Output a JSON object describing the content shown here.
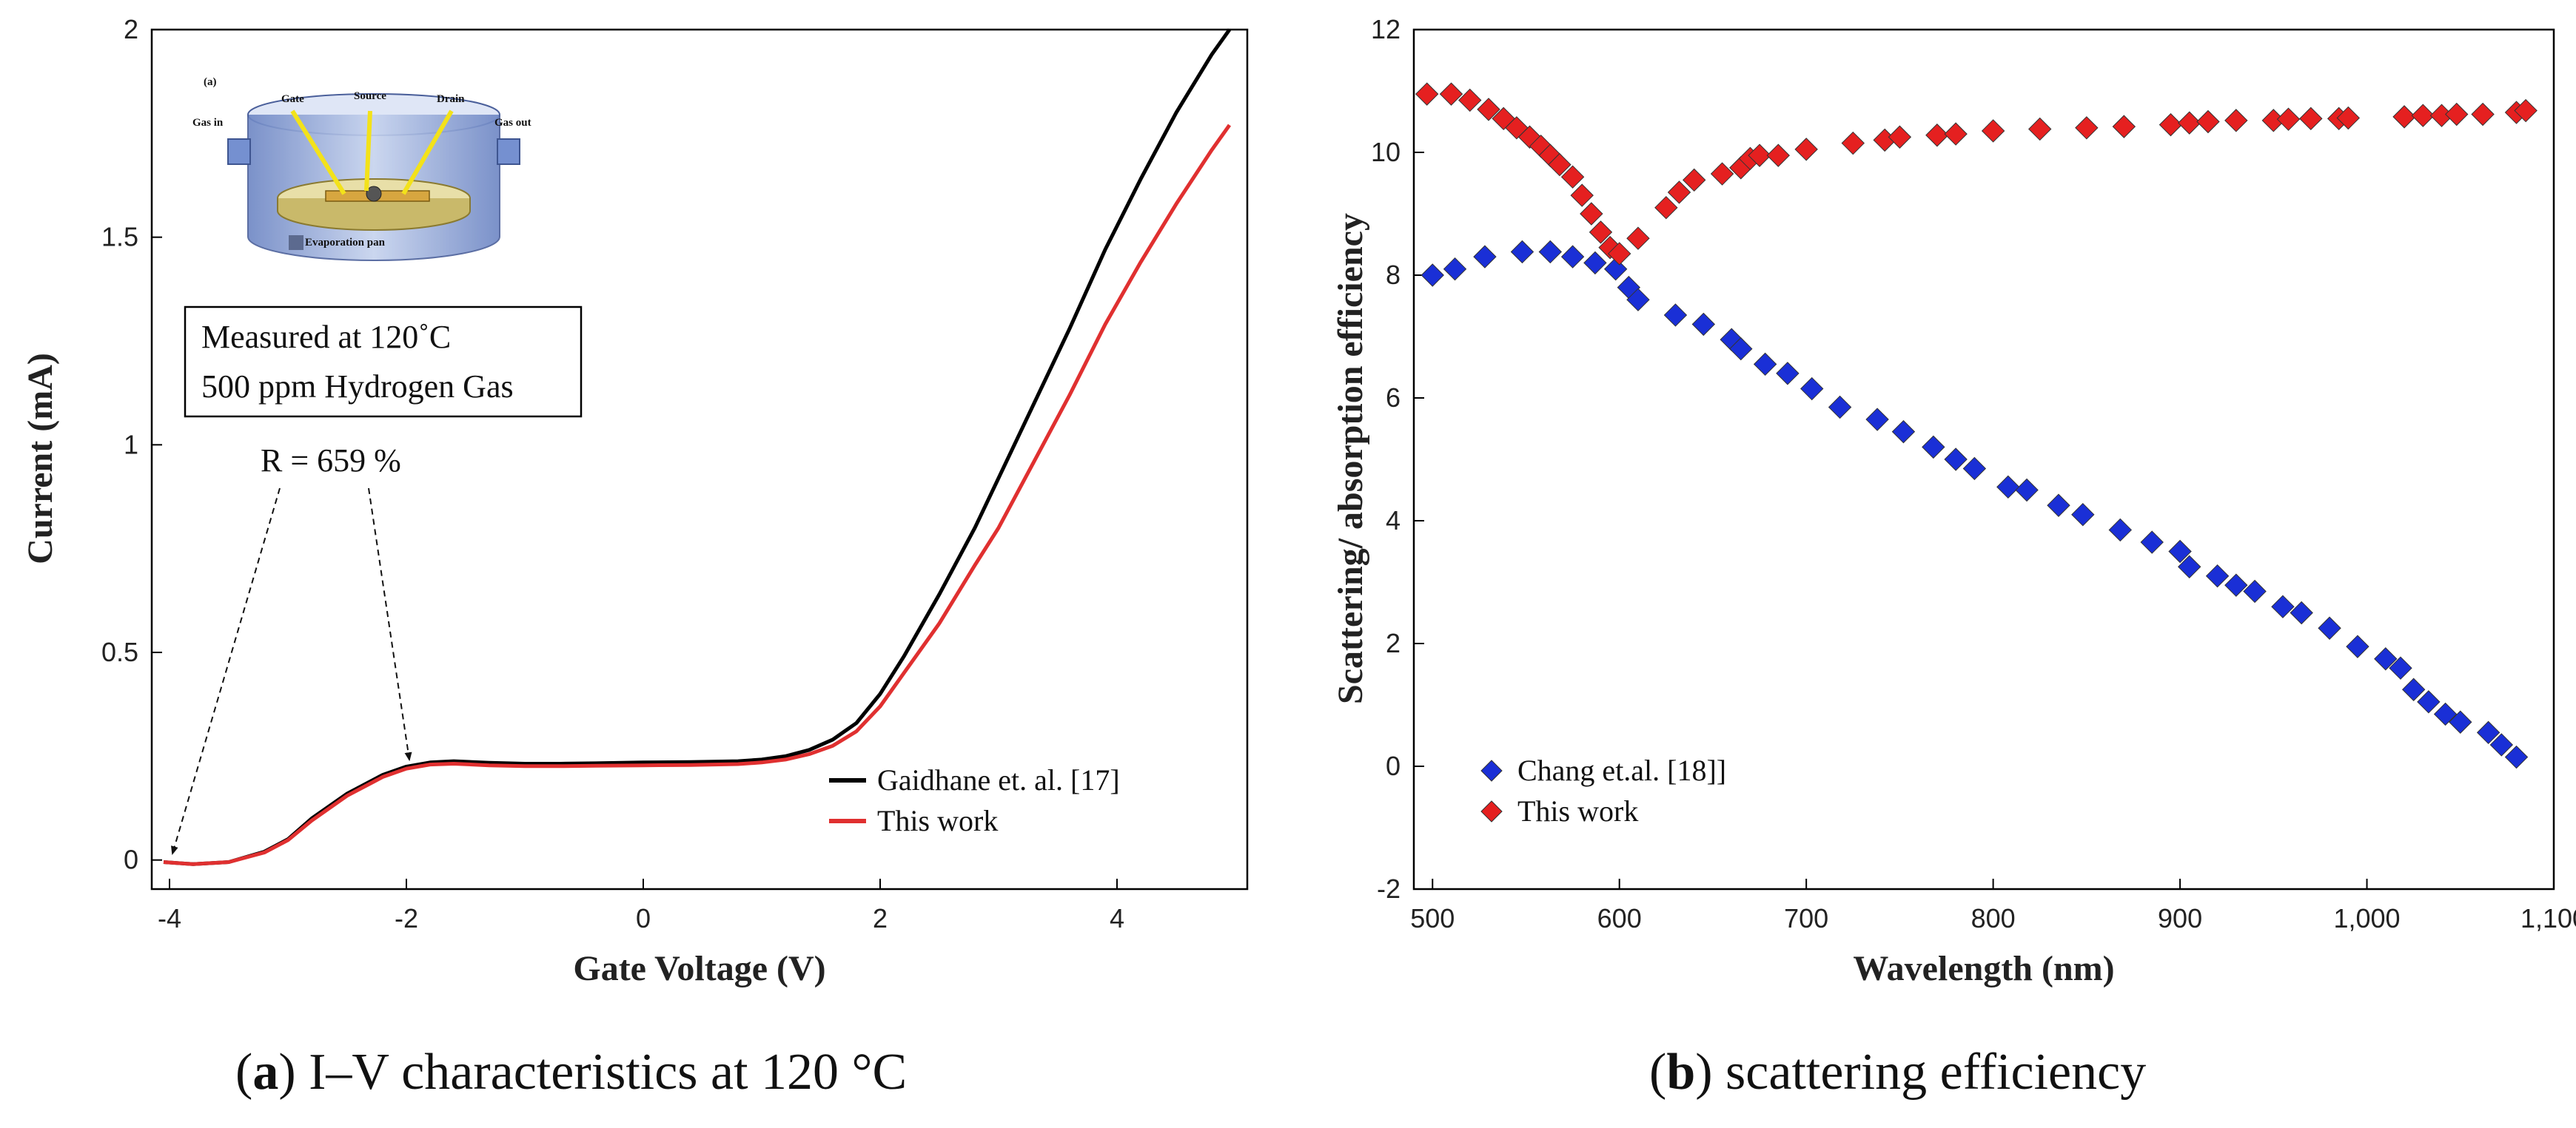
{
  "chart_data": [
    {
      "type": "line",
      "xlabel": "Gate Voltage (V)",
      "ylabel": "Current (mA)",
      "xlim": [
        -4.15,
        5.1
      ],
      "ylim": [
        -0.07,
        2.0
      ],
      "xticks": [
        -4,
        -2,
        0,
        2,
        4
      ],
      "xtick_labels": [
        "-4",
        "-2",
        "0",
        "2",
        "4"
      ],
      "yticks": [
        0,
        0.5,
        1,
        1.5,
        2
      ],
      "ytick_labels": [
        "0",
        "0.5",
        "1",
        "1.5",
        "2"
      ],
      "series": [
        {
          "name": "Gaidhane et. al. [17]",
          "color": "#000000",
          "x": [
            -4.05,
            -3.8,
            -3.5,
            -3.2,
            -3.0,
            -2.8,
            -2.5,
            -2.2,
            -2.0,
            -1.8,
            -1.6,
            -1.3,
            -1.0,
            -0.7,
            -0.4,
            0.0,
            0.4,
            0.8,
            1.0,
            1.2,
            1.4,
            1.6,
            1.8,
            2.0,
            2.2,
            2.5,
            2.8,
            3.0,
            3.3,
            3.6,
            3.9,
            4.2,
            4.5,
            4.8,
            4.95
          ],
          "values": [
            -0.005,
            -0.01,
            -0.005,
            0.02,
            0.05,
            0.1,
            0.16,
            0.205,
            0.225,
            0.235,
            0.238,
            0.234,
            0.232,
            0.232,
            0.233,
            0.235,
            0.236,
            0.238,
            0.242,
            0.25,
            0.265,
            0.29,
            0.33,
            0.4,
            0.49,
            0.64,
            0.8,
            0.92,
            1.1,
            1.28,
            1.47,
            1.64,
            1.8,
            1.94,
            2.0
          ]
        },
        {
          "name": "This work",
          "color": "#e03030",
          "x": [
            -4.05,
            -3.8,
            -3.5,
            -3.2,
            -3.0,
            -2.8,
            -2.5,
            -2.2,
            -2.0,
            -1.8,
            -1.6,
            -1.3,
            -1.0,
            -0.7,
            -0.4,
            0.0,
            0.4,
            0.8,
            1.0,
            1.2,
            1.4,
            1.6,
            1.8,
            2.0,
            2.2,
            2.5,
            2.8,
            3.0,
            3.3,
            3.6,
            3.9,
            4.2,
            4.5,
            4.8,
            4.95
          ],
          "values": [
            -0.005,
            -0.01,
            -0.005,
            0.018,
            0.048,
            0.095,
            0.155,
            0.2,
            0.22,
            0.23,
            0.232,
            0.228,
            0.226,
            0.226,
            0.227,
            0.228,
            0.229,
            0.231,
            0.235,
            0.242,
            0.255,
            0.275,
            0.31,
            0.37,
            0.45,
            0.57,
            0.71,
            0.8,
            0.96,
            1.12,
            1.29,
            1.44,
            1.58,
            1.71,
            1.77
          ]
        }
      ],
      "annotations": {
        "box_line1": "Measured at 120˚C",
        "box_line2": "500 ppm Hydrogen Gas",
        "ratio_text": "R = 659 %",
        "arrow_targets_x": [
          -4,
          -2
        ]
      },
      "inset": {
        "label_a": "(a)",
        "label_gate": "Gate",
        "label_source": "Source",
        "label_drain": "Drain",
        "label_gas_in": "Gas in",
        "label_gas_out": "Gas out",
        "label_pan": "Evaporation pan"
      },
      "legend_position": "bottom-right"
    },
    {
      "type": "scatter",
      "xlabel": "Wavelength (nm)",
      "ylabel": "Scattering/ absorption efficiency",
      "xlim": [
        490,
        1100
      ],
      "ylim": [
        -2,
        12
      ],
      "xticks": [
        500,
        600,
        700,
        800,
        900,
        1000,
        1100
      ],
      "xtick_labels": [
        "500",
        "600",
        "700",
        "800",
        "900",
        "1,000",
        "1,100"
      ],
      "yticks": [
        -2,
        0,
        2,
        4,
        6,
        8,
        10,
        12
      ],
      "ytick_labels": [
        "-2",
        "0",
        "2",
        "4",
        "6",
        "8",
        "10",
        "12"
      ],
      "series": [
        {
          "name": "Chang et.al. [18]]",
          "color": "#1a2fd6",
          "x": [
            500,
            512,
            528,
            548,
            563,
            575,
            587,
            598,
            605,
            610,
            630,
            645,
            660,
            665,
            678,
            690,
            703,
            718,
            738,
            752,
            768,
            780,
            790,
            808,
            818,
            835,
            848,
            868,
            885,
            900,
            905,
            920,
            930,
            940,
            955,
            965,
            980,
            995,
            1010,
            1018,
            1025,
            1033,
            1042,
            1050,
            1065,
            1072,
            1080
          ],
          "values": [
            8.0,
            8.1,
            8.3,
            8.38,
            8.38,
            8.3,
            8.2,
            8.1,
            7.8,
            7.6,
            7.35,
            7.2,
            6.95,
            6.8,
            6.55,
            6.4,
            6.15,
            5.85,
            5.65,
            5.45,
            5.2,
            5.0,
            4.85,
            4.55,
            4.5,
            4.25,
            4.1,
            3.85,
            3.65,
            3.5,
            3.25,
            3.1,
            2.95,
            2.85,
            2.6,
            2.5,
            2.25,
            1.95,
            1.75,
            1.6,
            1.25,
            1.05,
            0.85,
            0.72,
            0.55,
            0.35,
            0.15
          ]
        },
        {
          "name": "This work",
          "color": "#e52020",
          "x": [
            497,
            510,
            520,
            530,
            538,
            545,
            552,
            558,
            563,
            568,
            575,
            580,
            585,
            590,
            595,
            600,
            610,
            625,
            632,
            640,
            655,
            665,
            670,
            675,
            685,
            700,
            725,
            742,
            750,
            770,
            780,
            800,
            825,
            850,
            870,
            895,
            905,
            915,
            930,
            950,
            958,
            970,
            985,
            990,
            1020,
            1030,
            1040,
            1048,
            1062,
            1080,
            1085
          ],
          "values": [
            10.95,
            10.95,
            10.85,
            10.7,
            10.55,
            10.4,
            10.25,
            10.1,
            9.95,
            9.8,
            9.6,
            9.3,
            9.0,
            8.7,
            8.45,
            8.35,
            8.6,
            9.1,
            9.35,
            9.55,
            9.65,
            9.75,
            9.9,
            9.95,
            9.95,
            10.05,
            10.15,
            10.2,
            10.25,
            10.28,
            10.3,
            10.35,
            10.38,
            10.4,
            10.42,
            10.45,
            10.48,
            10.5,
            10.52,
            10.52,
            10.54,
            10.55,
            10.55,
            10.56,
            10.58,
            10.6,
            10.6,
            10.62,
            10.62,
            10.65,
            10.68
          ]
        }
      ],
      "legend_position": "bottom-left"
    }
  ],
  "captions": {
    "a_letter": "a",
    "a_text": ") I–V characteristics at 120 °C",
    "b_letter": "b",
    "b_text": ") scattering efficiency"
  }
}
